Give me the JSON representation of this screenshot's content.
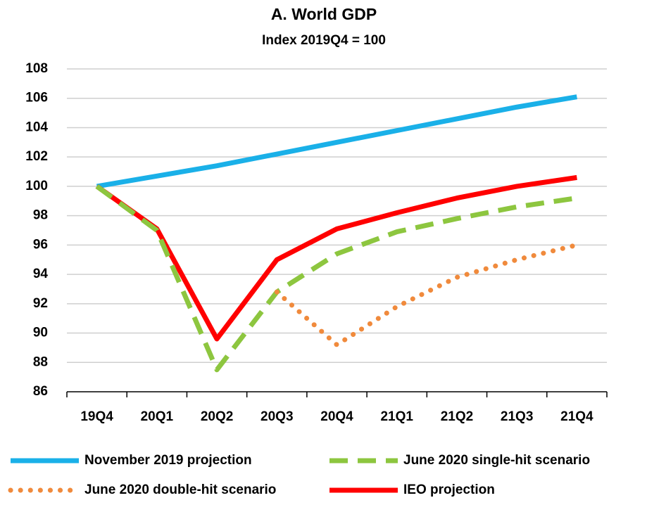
{
  "chart_data": {
    "type": "line",
    "title": "A. World GDP",
    "subtitle": "Index 2019Q4 = 100",
    "categories": [
      "19Q4",
      "20Q1",
      "20Q2",
      "20Q3",
      "20Q4",
      "21Q1",
      "21Q2",
      "21Q3",
      "21Q4"
    ],
    "series": [
      {
        "name": "November 2019 projection",
        "color": "#1ab0e8",
        "dash": "solid",
        "values": [
          100,
          100.7,
          101.4,
          102.2,
          103.0,
          103.8,
          104.6,
          105.4,
          106.1
        ]
      },
      {
        "name": "June 2020 single-hit scenario",
        "color": "#8dc63f",
        "dash": "dashed",
        "values": [
          100,
          97.0,
          87.5,
          92.8,
          95.4,
          96.9,
          97.8,
          98.6,
          99.2
        ]
      },
      {
        "name": "June 2020 double-hit scenario",
        "color": "#f08a3c",
        "dash": "dotted",
        "values": [
          null,
          null,
          null,
          92.8,
          89.2,
          91.8,
          93.8,
          95.0,
          96.0
        ]
      },
      {
        "name": "IEO projection",
        "color": "#ff0000",
        "dash": "solid",
        "values": [
          100,
          97.1,
          89.6,
          95.0,
          97.1,
          98.2,
          99.2,
          100.0,
          100.6
        ]
      }
    ],
    "ylim": [
      86,
      108
    ],
    "yticks": [
      86,
      88,
      90,
      92,
      94,
      96,
      98,
      100,
      102,
      104,
      106,
      108
    ],
    "grid": true
  }
}
